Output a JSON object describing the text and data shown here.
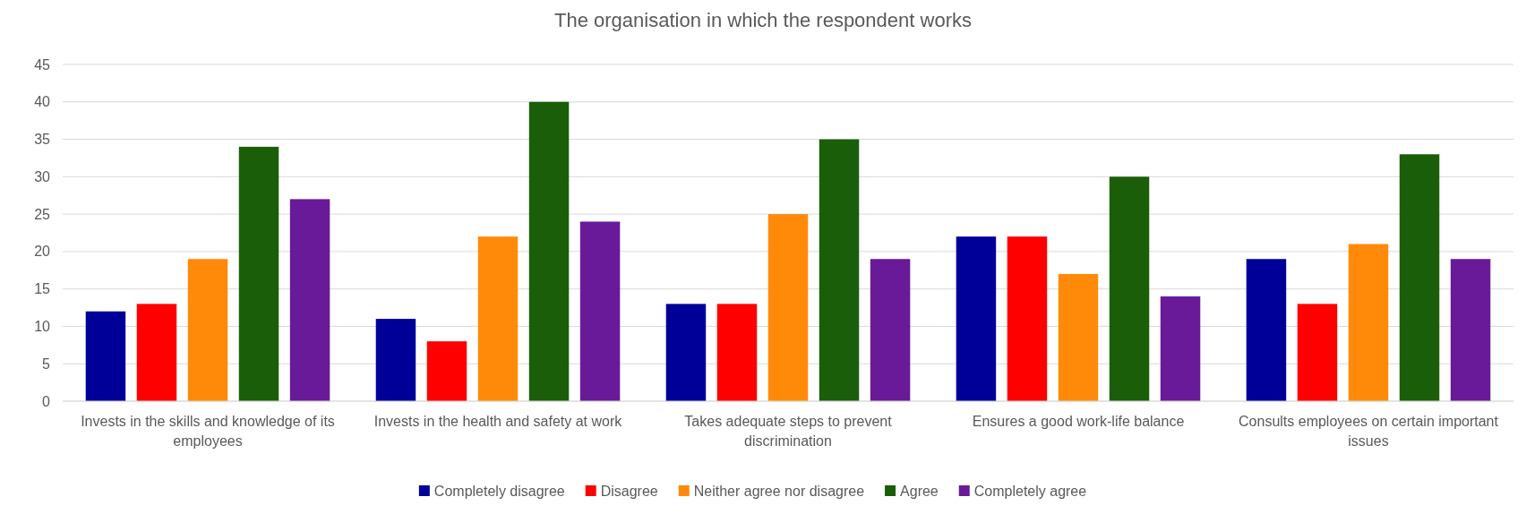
{
  "chart_data": {
    "type": "bar",
    "title": "The organisation in which the respondent works",
    "categories": [
      "Invests in the skills and knowledge of its employees",
      "Invests in the health and safety at work",
      "Takes adequate steps to prevent discrimination",
      "Ensures a good work-life balance",
      "Consults employees on certain important issues"
    ],
    "series": [
      {
        "name": "Completely disagree",
        "color": "#000099",
        "values": [
          12,
          11,
          13,
          22,
          19
        ]
      },
      {
        "name": "Disagree",
        "color": "#ff0000",
        "values": [
          13,
          8,
          13,
          22,
          13
        ]
      },
      {
        "name": "Neither agree nor disagree",
        "color": "#ff8a0a",
        "values": [
          19,
          22,
          25,
          17,
          21
        ]
      },
      {
        "name": "Agree",
        "color": "#1a5e0a",
        "values": [
          34,
          40,
          35,
          30,
          33
        ]
      },
      {
        "name": "Completely agree",
        "color": "#681a98",
        "values": [
          27,
          24,
          19,
          14,
          19
        ]
      }
    ],
    "ylim": [
      0,
      45
    ],
    "yticks": [
      0,
      5,
      10,
      15,
      20,
      25,
      30,
      35,
      40,
      45
    ],
    "grid": "y",
    "legend": "bottom"
  }
}
